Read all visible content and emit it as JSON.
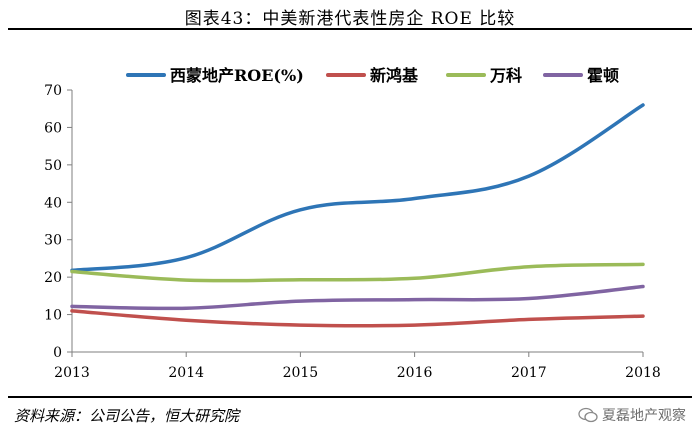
{
  "title": "图表43：中美新港代表性房企 ROE 比较",
  "source": "资料来源：公司公告，恒大研究院",
  "watermark": "夏磊地产观察",
  "chart_data": {
    "type": "line",
    "title": "图表43：中美新港代表性房企 ROE 比较",
    "x": [
      "2013",
      "2014",
      "2015",
      "2016",
      "2017",
      "2018"
    ],
    "ylim": [
      0,
      70
    ],
    "yticks": [
      0,
      10,
      20,
      30,
      40,
      50,
      60,
      70
    ],
    "legend_position": "top",
    "grid": false,
    "series": [
      {
        "name": "西蒙地产ROE(%)",
        "color": "#2e75b6",
        "values": [
          21.8,
          25.2,
          38.0,
          41.0,
          47.0,
          66.0
        ]
      },
      {
        "name": "新鸿基",
        "color": "#c0504d",
        "values": [
          11.0,
          8.5,
          7.2,
          7.2,
          8.7,
          9.6
        ]
      },
      {
        "name": "万科",
        "color": "#9bbb59",
        "values": [
          21.5,
          19.2,
          19.3,
          19.7,
          22.8,
          23.4
        ]
      },
      {
        "name": "霍顿",
        "color": "#8064a2",
        "values": [
          12.2,
          11.7,
          13.6,
          14.0,
          14.3,
          17.5
        ]
      }
    ]
  }
}
